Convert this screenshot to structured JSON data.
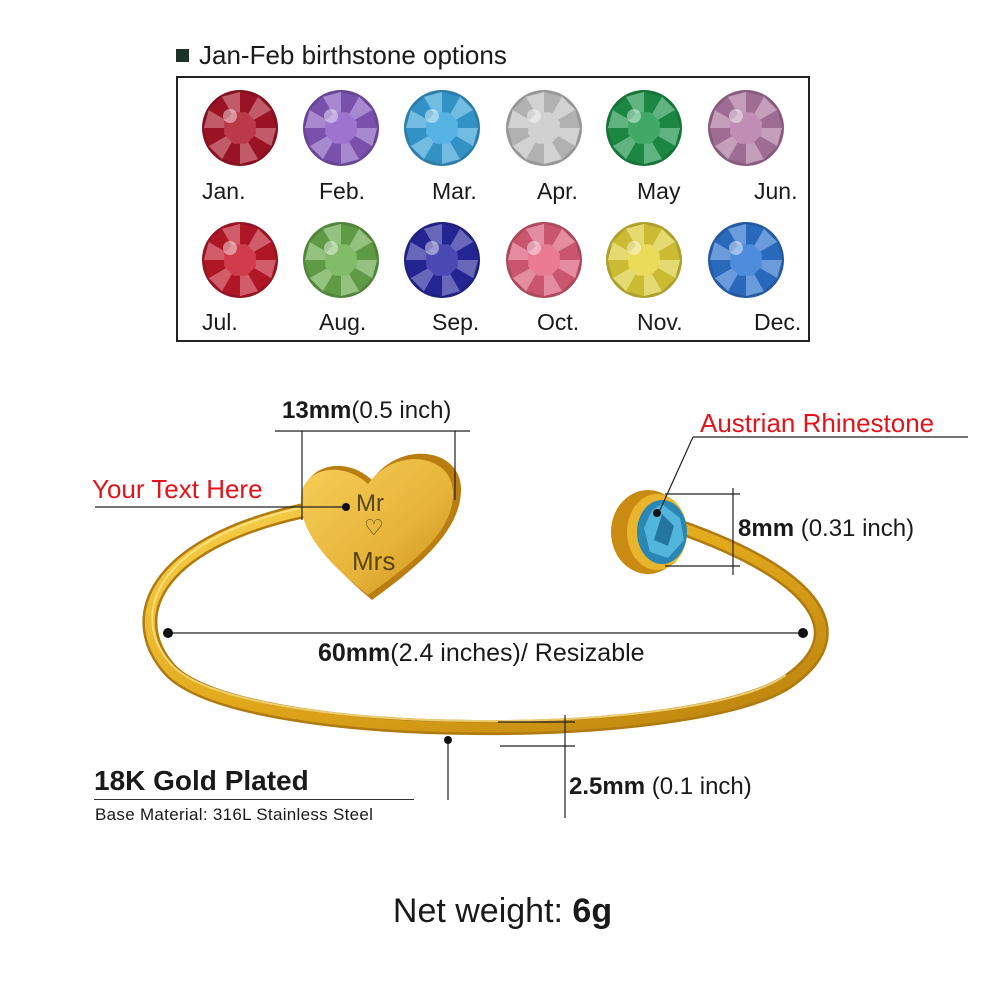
{
  "birthstone": {
    "title": "Jan-Feb birthstone options",
    "months": [
      {
        "label": "Jan.",
        "color": "#b0162a"
      },
      {
        "label": "Feb.",
        "color": "#8b5cc6"
      },
      {
        "label": "Mar.",
        "color": "#3aa6e0"
      },
      {
        "label": "Apr.",
        "color": "#c9c9c9"
      },
      {
        "label": "May",
        "color": "#1f9a4c"
      },
      {
        "label": "Jun.",
        "color": "#b57aa8"
      },
      {
        "label": "Jul.",
        "color": "#c81a2c"
      },
      {
        "label": "Aug.",
        "color": "#6db04e"
      },
      {
        "label": "Sep.",
        "color": "#2b2aa8"
      },
      {
        "label": "Oct.",
        "color": "#e5627d"
      },
      {
        "label": "Nov.",
        "color": "#e6d53a"
      },
      {
        "label": "Dec.",
        "color": "#2f78d6"
      }
    ]
  },
  "callouts": {
    "your_text": "Your Text Here",
    "rhinestone": "Austrian Rhinestone"
  },
  "engraving": {
    "line1": "Mr",
    "symbol": "♡",
    "line2": "Mrs"
  },
  "dimensions": {
    "heart_bold": "13mm",
    "heart_rest": "(0.5 inch)",
    "stone_bold": "8mm",
    "stone_rest": " (0.31 inch)",
    "width_bold": "60mm",
    "width_rest": "(2.4 inches)/ Resizable",
    "wire_bold": "2.5mm",
    "wire_rest": " (0.1 inch)"
  },
  "material": {
    "plated": "18K Gold Plated",
    "base": "Base Material: 316L Stainless Steel"
  },
  "weight": {
    "label": "Net weight: ",
    "value": "6g"
  },
  "colors": {
    "gold": "#e2a91c",
    "callout_red": "#e3131b",
    "rhinestone": "#2d9fc9"
  }
}
